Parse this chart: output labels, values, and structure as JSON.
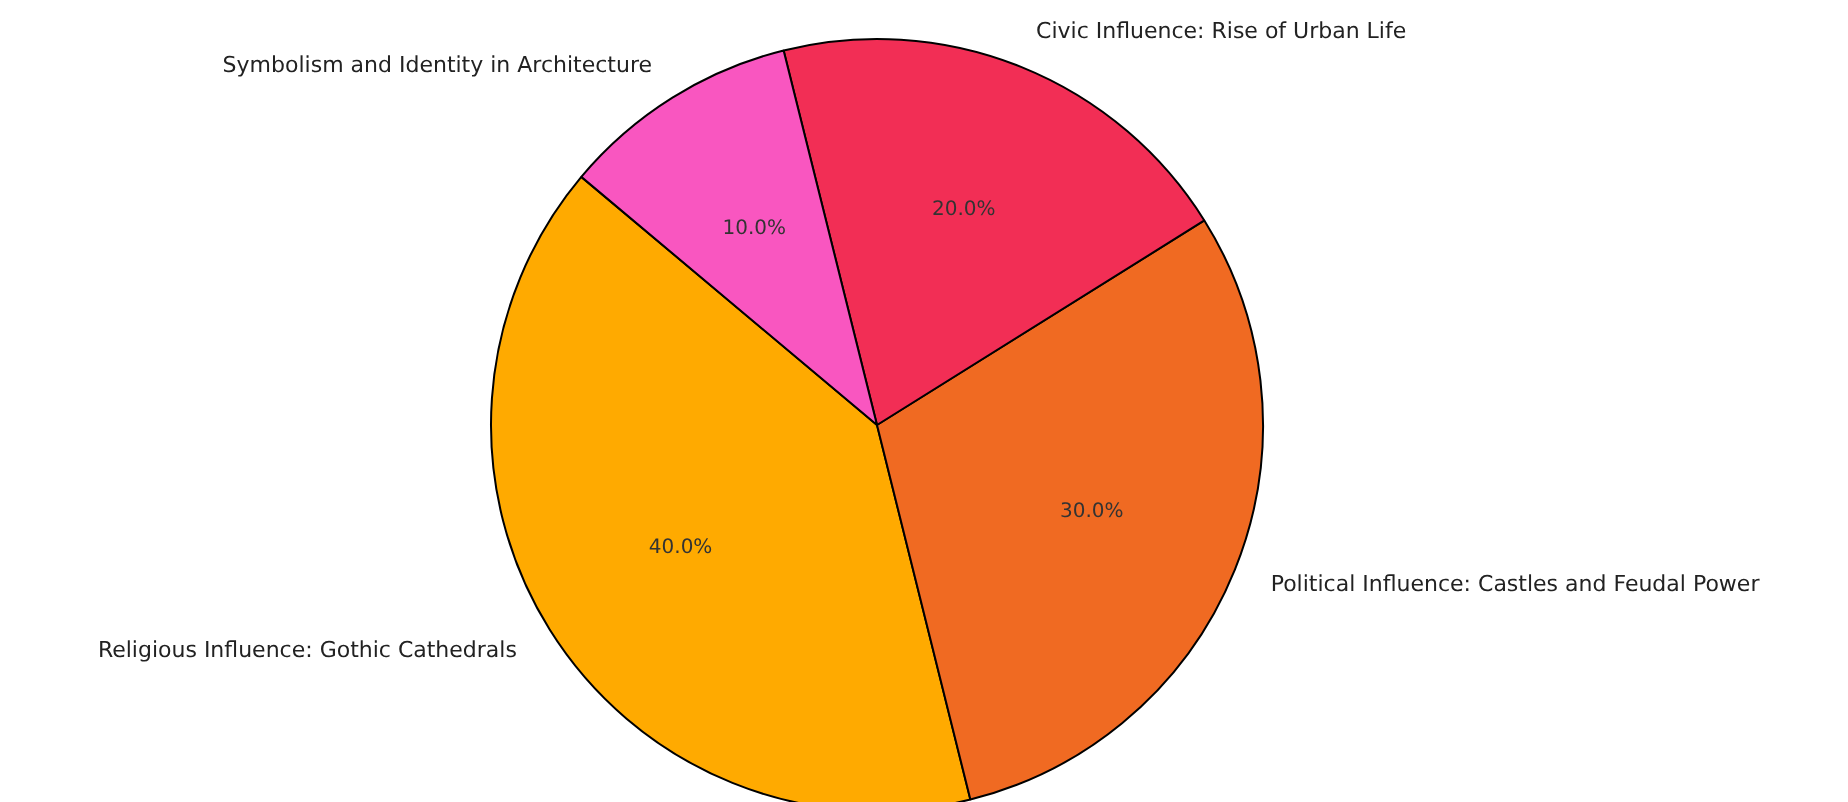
{
  "chart_data": {
    "type": "pie",
    "categories": [
      "Religious Influence: Gothic Cathedrals",
      "Political Influence: Castles and Feudal Power",
      "Civic Influence: Rise of Urban Life",
      "Symbolism and Identity in Architecture"
    ],
    "values": [
      40,
      30,
      20,
      10
    ],
    "colors": [
      "#ffaa00",
      "#f06a22",
      "#f22e55",
      "#f956c0"
    ],
    "value_labels": [
      "40.0%",
      "30.0%",
      "20.0%",
      "10.0%"
    ]
  }
}
